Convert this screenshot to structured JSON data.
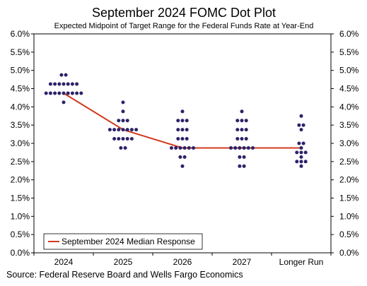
{
  "chart_data": {
    "type": "scatter",
    "title": "September 2024 FOMC Dot Plot",
    "subtitle": "Expected Midpoint of Target Range for the Federal Funds Rate at Year-End",
    "categories": [
      "2024",
      "2025",
      "2026",
      "2027",
      "Longer Run"
    ],
    "ylim": [
      0,
      6
    ],
    "ytick_labels": [
      "0.0%",
      "0.5%",
      "1.0%",
      "1.5%",
      "2.0%",
      "2.5%",
      "3.0%",
      "3.5%",
      "4.0%",
      "4.5%",
      "5.0%",
      "5.5%",
      "6.0%"
    ],
    "dots": [
      {
        "category": "2024",
        "rows": [
          {
            "value": 4.875,
            "count": 2
          },
          {
            "value": 4.625,
            "count": 7
          },
          {
            "value": 4.375,
            "count": 9
          },
          {
            "value": 4.125,
            "count": 1
          }
        ]
      },
      {
        "category": "2025",
        "rows": [
          {
            "value": 4.125,
            "count": 1
          },
          {
            "value": 3.875,
            "count": 1
          },
          {
            "value": 3.625,
            "count": 3
          },
          {
            "value": 3.375,
            "count": 7
          },
          {
            "value": 3.125,
            "count": 5
          },
          {
            "value": 2.875,
            "count": 2
          }
        ]
      },
      {
        "category": "2026",
        "rows": [
          {
            "value": 3.875,
            "count": 1
          },
          {
            "value": 3.625,
            "count": 3
          },
          {
            "value": 3.375,
            "count": 3
          },
          {
            "value": 3.125,
            "count": 3
          },
          {
            "value": 2.875,
            "count": 6
          },
          {
            "value": 2.625,
            "count": 2
          },
          {
            "value": 2.375,
            "count": 1
          }
        ]
      },
      {
        "category": "2027",
        "rows": [
          {
            "value": 3.875,
            "count": 1
          },
          {
            "value": 3.625,
            "count": 3
          },
          {
            "value": 3.375,
            "count": 3
          },
          {
            "value": 3.125,
            "count": 3
          },
          {
            "value": 2.875,
            "count": 6
          },
          {
            "value": 2.625,
            "count": 2
          },
          {
            "value": 2.375,
            "count": 2
          }
        ]
      },
      {
        "category": "Longer Run",
        "rows": [
          {
            "value": 3.75,
            "count": 1
          },
          {
            "value": 3.5,
            "count": 2
          },
          {
            "value": 3.375,
            "count": 1
          },
          {
            "value": 3.0,
            "count": 2
          },
          {
            "value": 2.875,
            "count": 1
          },
          {
            "value": 2.75,
            "count": 3
          },
          {
            "value": 2.625,
            "count": 1
          },
          {
            "value": 2.5,
            "count": 3
          },
          {
            "value": 2.375,
            "count": 1
          }
        ]
      }
    ],
    "series": [
      {
        "name": "September 2024 Median Response",
        "values": [
          4.375,
          3.375,
          2.875,
          2.875,
          2.875
        ]
      }
    ],
    "legend_position": "bottom-left",
    "grid": false,
    "source": "Source: Federal Reserve Board and Wells Fargo Economics",
    "colors": {
      "dots": "#2b2368",
      "median": "#d23a1e",
      "axis": "#000000"
    }
  }
}
